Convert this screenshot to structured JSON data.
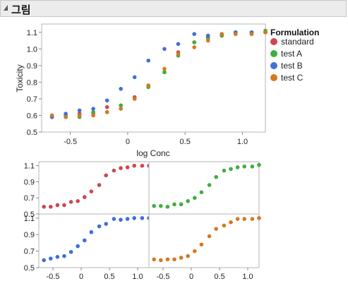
{
  "header": {
    "title": "그림"
  },
  "colors": {
    "standard": "#d0464e",
    "test A": "#3fae3f",
    "test B": "#3f6fd8",
    "test C": "#d6781e"
  },
  "legend": {
    "title": "Formulation",
    "items": [
      "standard",
      "test A",
      "test B",
      "test C"
    ]
  },
  "chart_data": [
    {
      "type": "scatter",
      "xlabel": "log Conc",
      "ylabel": "Toxicity",
      "xlim": [
        -0.75,
        1.2
      ],
      "ylim": [
        0.5,
        1.15
      ],
      "xticks": [
        -0.5,
        0,
        0.5,
        1
      ],
      "xtick_labels": [
        "-0.5",
        "0",
        "0.5",
        "1.0"
      ],
      "yticks": [
        0.5,
        0.6,
        0.7,
        0.8,
        0.9,
        1.0,
        1.1
      ],
      "ytick_labels": [
        "0.5",
        "0.6",
        "0.7",
        "0.8",
        "0.9",
        "1.0",
        "1.1"
      ],
      "grid": false,
      "legend_position": "right",
      "x": [
        -0.66,
        -0.54,
        -0.42,
        -0.3,
        -0.18,
        -0.06,
        0.06,
        0.18,
        0.32,
        0.44,
        0.58,
        0.7,
        0.82,
        0.94,
        1.08,
        1.2
      ],
      "series": [
        {
          "name": "standard",
          "values": [
            0.59,
            0.59,
            0.61,
            0.61,
            0.65,
            0.66,
            0.71,
            0.78,
            0.86,
            0.98,
            1.04,
            1.07,
            1.08,
            1.1,
            1.1,
            1.1
          ]
        },
        {
          "name": "test A",
          "values": [
            0.6,
            0.6,
            0.59,
            0.62,
            0.62,
            0.66,
            0.7,
            0.77,
            0.86,
            0.96,
            1.04,
            1.06,
            1.08,
            1.09,
            1.09,
            1.11
          ]
        },
        {
          "name": "test B",
          "values": [
            0.59,
            0.61,
            0.63,
            0.64,
            0.69,
            0.76,
            0.83,
            0.93,
            1.0,
            1.03,
            1.09,
            1.08,
            1.09,
            1.1,
            1.1,
            1.1
          ]
        },
        {
          "name": "test C",
          "values": [
            0.6,
            0.59,
            0.6,
            0.6,
            0.62,
            0.64,
            0.7,
            0.78,
            0.88,
            0.97,
            1.01,
            1.05,
            1.09,
            1.09,
            1.09,
            1.1
          ]
        }
      ]
    },
    {
      "type": "scatter",
      "layout": "2x2 grid, one panel per Formulation",
      "xlim": [
        -0.75,
        1.2
      ],
      "ylim": [
        0.5,
        1.15
      ],
      "xticks": [
        -0.5,
        0,
        0.5,
        1
      ],
      "xtick_labels": [
        "-0.5",
        "0",
        "0.5",
        "1.0"
      ],
      "yticks": [
        0.5,
        0.7,
        0.9,
        1.1
      ],
      "ytick_labels": [
        "0.5",
        "0.7",
        "0.9",
        "1.1"
      ],
      "panels": [
        "standard",
        "test A",
        "test B",
        "test C"
      ]
    }
  ]
}
